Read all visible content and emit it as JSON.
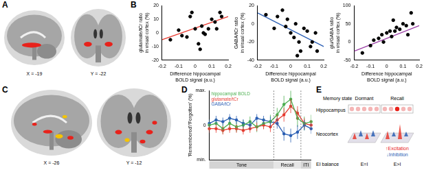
{
  "panels": {
    "A": {
      "label": "A",
      "slices": [
        "X = -19",
        "Y = -22"
      ]
    },
    "B": {
      "label": "B"
    },
    "C": {
      "label": "C",
      "slices": [
        "X = -26",
        "Y = -12"
      ]
    },
    "D": {
      "label": "D"
    },
    "E": {
      "label": "E",
      "row_title": "Memory state",
      "states": [
        "Dormant",
        "Recall"
      ],
      "layers": [
        "Hippocampus",
        "Neocortex"
      ],
      "balance_title": "EI balance",
      "balances": [
        "E=I",
        "E>I"
      ],
      "arrows": [
        "Excitation",
        "Inhibition"
      ]
    }
  },
  "chart_data": [
    {
      "type": "scatter",
      "x_label": [
        "Difference hippocampal",
        "BOLD signal (a.u.)"
      ],
      "y_label": [
        "glutamate/tCr ratio",
        "in visual cortex (%)"
      ],
      "x": [
        -0.15,
        -0.1,
        -0.08,
        -0.05,
        -0.03,
        -0.02,
        0.0,
        0.02,
        0.03,
        0.04,
        0.05,
        0.06,
        0.08,
        0.1,
        0.12,
        0.13,
        0.15,
        0.16
      ],
      "values": [
        -5,
        2,
        -2,
        -3,
        12,
        15,
        3,
        -8,
        -12,
        5,
        0,
        -1,
        3,
        10,
        8,
        3,
        15,
        12
      ],
      "color": "#000000",
      "marker": "circle",
      "trend_line": {
        "x": [
          -0.2,
          0.2
        ],
        "values": [
          -5,
          12
        ],
        "color": "#e8392f"
      },
      "xlim": [
        -0.2,
        0.2
      ],
      "xticks": [
        -0.2,
        -0.1,
        0,
        0.1,
        0.2
      ],
      "ylim": [
        -20,
        20
      ],
      "yticks": [
        -20,
        -10,
        0,
        10,
        20
      ],
      "grid": false
    },
    {
      "type": "scatter",
      "x_label": [
        "Difference hippocampal",
        "BOLD signal (a.u.)"
      ],
      "y_label": [
        "GABA/tCr ratio",
        "in visual cortex (%)"
      ],
      "x": [
        -0.15,
        -0.1,
        -0.08,
        -0.05,
        -0.03,
        -0.02,
        0.0,
        0.02,
        0.03,
        0.04,
        0.05,
        0.06,
        0.08,
        0.1,
        0.12,
        0.13,
        0.15,
        0.16
      ],
      "values": [
        10,
        -5,
        8,
        15,
        -3,
        5,
        -10,
        -15,
        0,
        -35,
        -20,
        -30,
        -5,
        -8,
        -25,
        -20,
        -10,
        -30
      ],
      "color": "#000000",
      "marker": "circle",
      "trend_line": {
        "x": [
          -0.2,
          0.2
        ],
        "values": [
          12,
          -25
        ],
        "color": "#2b5fb4"
      },
      "xlim": [
        -0.2,
        0.2
      ],
      "xticks": [
        -0.2,
        -0.1,
        0,
        0.1,
        0.2
      ],
      "ylim": [
        -40,
        20
      ],
      "yticks": [
        -40,
        -20,
        0,
        20
      ],
      "grid": false
    },
    {
      "type": "scatter",
      "x_label": [
        "Difference hippocampal",
        "BOLD signal (a.u.)"
      ],
      "y_label": [
        "glu/GABA ratio",
        "in visual cortex (%)"
      ],
      "x": [
        -0.15,
        -0.1,
        -0.08,
        -0.05,
        -0.03,
        -0.02,
        0.0,
        0.02,
        0.03,
        0.04,
        0.05,
        0.06,
        0.08,
        0.1,
        0.12,
        0.13,
        0.15,
        0.16
      ],
      "values": [
        -30,
        -10,
        5,
        10,
        20,
        0,
        25,
        30,
        15,
        60,
        30,
        40,
        35,
        50,
        45,
        20,
        80,
        50
      ],
      "color": "#000000",
      "marker": "circle",
      "trend_line": {
        "x": [
          -0.2,
          0.2
        ],
        "values": [
          -25,
          45
        ],
        "color": "#9b3fa6"
      },
      "xlim": [
        -0.2,
        0.2
      ],
      "xticks": [
        -0.2,
        -0.1,
        0,
        0.1,
        0.2
      ],
      "ylim": [
        -50,
        100
      ],
      "yticks": [
        -50,
        0,
        50,
        100
      ],
      "grid": false
    },
    {
      "type": "line",
      "y_label": "'Remembered'/'Forgotten' (%)",
      "categories": [
        null,
        null,
        null,
        null,
        null,
        null,
        null,
        null,
        null,
        null,
        null,
        null,
        null,
        null,
        null,
        null
      ],
      "series": [
        {
          "name": "hippocampal BOLD",
          "color": "#4caf50",
          "values": [
            0,
            0.05,
            -0.1,
            0.05,
            -0.05,
            0,
            0.1,
            -0.05,
            0.05,
            0.1,
            0.3,
            0.6,
            0.75,
            0.2,
            0.05,
            0.1
          ],
          "errors": [
            0.15,
            0.15,
            0.15,
            0.15,
            0.15,
            0.15,
            0.15,
            0.15,
            0.15,
            0.2,
            0.2,
            0.25,
            0.25,
            0.25,
            0.2,
            0.2
          ]
        },
        {
          "name": "glutamate/tCr",
          "color": "#e8392f",
          "values": [
            -0.1,
            -0.1,
            -0.15,
            -0.1,
            -0.1,
            -0.15,
            -0.1,
            -0.05,
            0,
            -0.05,
            0.15,
            0.3,
            0.55,
            0.35,
            0.05,
            0
          ],
          "errors": [
            0.12,
            0.12,
            0.12,
            0.12,
            0.12,
            0.12,
            0.12,
            0.12,
            0.12,
            0.15,
            0.15,
            0.2,
            0.2,
            0.2,
            0.15,
            0.15
          ]
        },
        {
          "name": "GABA/tCr",
          "color": "#2b5fb4",
          "values": [
            0.05,
            0.15,
            0.1,
            0.2,
            0.15,
            0.05,
            0.0,
            0.2,
            0.15,
            0.1,
            0.05,
            -0.25,
            -0.3,
            -0.2,
            0,
            -0.1
          ],
          "errors": [
            0.12,
            0.12,
            0.12,
            0.12,
            0.12,
            0.12,
            0.12,
            0.12,
            0.12,
            0.15,
            0.15,
            0.2,
            0.2,
            0.2,
            0.15,
            0.15
          ]
        }
      ],
      "ylim": [
        -1,
        1
      ],
      "yticks": [
        {
          "value": -1,
          "label": "min."
        },
        0,
        {
          "value": 1,
          "label": "max."
        }
      ],
      "phases": [
        {
          "label": "Tone",
          "start": 0,
          "end": 9
        },
        {
          "label": "Recall",
          "start": 10,
          "end": 13
        },
        {
          "label": "ITI",
          "start": 14,
          "end": 15
        }
      ],
      "legend": "top-left",
      "tick_labels": "y",
      "grid": false,
      "marker": "circle"
    }
  ]
}
